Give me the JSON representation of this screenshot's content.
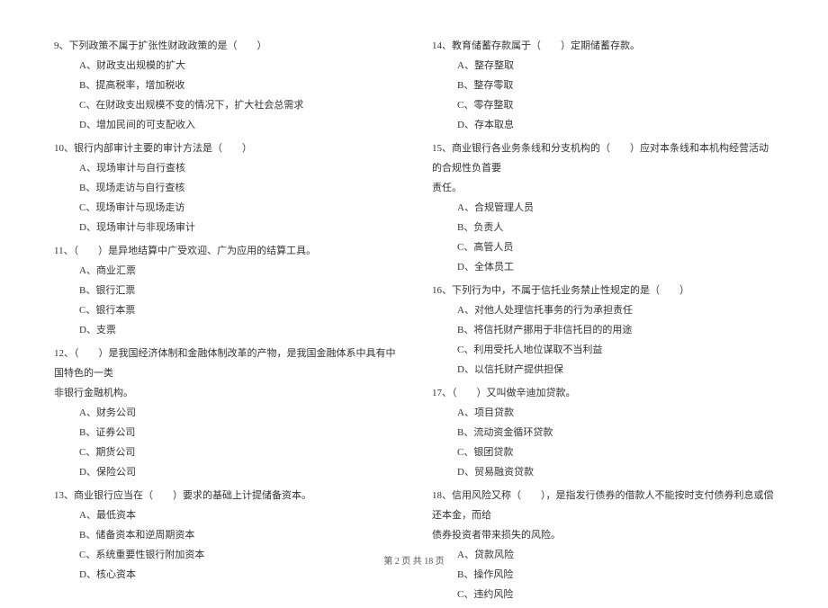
{
  "footer": "第 2 页 共 18 页",
  "left": {
    "q9": {
      "text": "9、下列政策不属于扩张性财政政策的是（　　）",
      "a": "A、财政支出规模的扩大",
      "b": "B、提高税率，增加税收",
      "c": "C、在财政支出规模不变的情况下，扩大社会总需求",
      "d": "D、增加民间的可支配收入"
    },
    "q10": {
      "text": "10、银行内部审计主要的审计方法是（　　）",
      "a": "A、现场审计与自行查核",
      "b": "B、现场走访与自行查核",
      "c": "C、现场审计与现场走访",
      "d": "D、现场审计与非现场审计"
    },
    "q11": {
      "text": "11、（　　）是异地结算中广受欢迎、广为应用的结算工具。",
      "a": "A、商业汇票",
      "b": "B、银行汇票",
      "c": "C、银行本票",
      "d": "D、支票"
    },
    "q12": {
      "text": "12、（　　）是我国经济体制和金融体制改革的产物，是我国金融体系中具有中国特色的一类",
      "note": "非银行金融机构。",
      "a": "A、财务公司",
      "b": "B、证券公司",
      "c": "C、期货公司",
      "d": "D、保险公司"
    },
    "q13": {
      "text": "13、商业银行应当在（　　）要求的基础上计提储备资本。",
      "a": "A、最低资本",
      "b": "B、储备资本和逆周期资本",
      "c": "C、系统重要性银行附加资本",
      "d": "D、核心资本"
    }
  },
  "right": {
    "q14": {
      "text": "14、教育储蓄存款属于（　　）定期储蓄存款。",
      "a": "A、整存整取",
      "b": "B、整存零取",
      "c": "C、零存整取",
      "d": "D、存本取息"
    },
    "q15": {
      "text": "15、商业银行各业务条线和分支机构的（　　）应对本条线和本机构经营活动的合规性负首要",
      "note": "责任。",
      "a": "A、合规管理人员",
      "b": "B、负责人",
      "c": "C、高管人员",
      "d": "D、全体员工"
    },
    "q16": {
      "text": "16、下列行为中，不属于信托业务禁止性规定的是（　　）",
      "a": "A、对他人处理信托事务的行为承担责任",
      "b": "B、将信托财产挪用于非信托目的的用途",
      "c": "C、利用受托人地位谋取不当利益",
      "d": "D、以信托财产提供担保"
    },
    "q17": {
      "text": "17、（　　）又叫做辛迪加贷款。",
      "a": "A、项目贷款",
      "b": "B、流动资金循环贷款",
      "c": "C、银团贷款",
      "d": "D、贸易融资贷款"
    },
    "q18": {
      "text": "18、信用风险又称（　　），是指发行债券的借款人不能按时支付债券利息或偿还本金，而给",
      "note": "债券投资者带来损失的风险。",
      "a": "A、贷款风险",
      "b": "B、操作风险",
      "c": "C、违约风险"
    }
  }
}
